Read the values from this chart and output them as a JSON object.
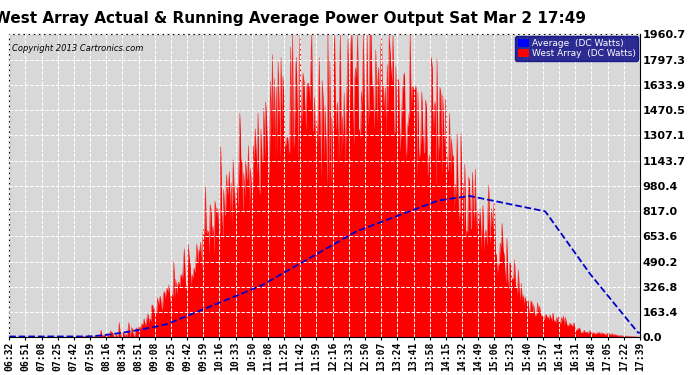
{
  "title": "West Array Actual & Running Average Power Output Sat Mar 2 17:49",
  "copyright": "Copyright 2013 Cartronics.com",
  "ylabel_right_values": [
    0.0,
    163.4,
    326.8,
    490.2,
    653.6,
    817.0,
    980.4,
    1143.7,
    1307.1,
    1470.5,
    1633.9,
    1797.3,
    1960.7
  ],
  "ymax": 1960.7,
  "ymin": 0.0,
  "legend_labels": [
    "Average  (DC Watts)",
    "West Array  (DC Watts)"
  ],
  "legend_colors": [
    "#0000ff",
    "#ff0000"
  ],
  "bg_color": "#ffffff",
  "plot_bg_color": "#d8d8d8",
  "grid_color": "#ffffff",
  "bar_color": "#ff0000",
  "line_color": "#0000cc",
  "title_fontsize": 11,
  "tick_fontsize": 7,
  "x_tick_labels": [
    "06:32",
    "06:51",
    "07:08",
    "07:25",
    "07:42",
    "07:59",
    "08:16",
    "08:34",
    "08:51",
    "09:08",
    "09:25",
    "09:42",
    "09:59",
    "10:16",
    "10:33",
    "10:50",
    "11:08",
    "11:25",
    "11:42",
    "11:59",
    "12:16",
    "12:33",
    "12:50",
    "13:07",
    "13:24",
    "13:41",
    "13:58",
    "14:15",
    "14:32",
    "14:49",
    "15:06",
    "15:23",
    "15:40",
    "15:57",
    "16:14",
    "16:31",
    "16:48",
    "17:05",
    "17:22",
    "17:39"
  ]
}
